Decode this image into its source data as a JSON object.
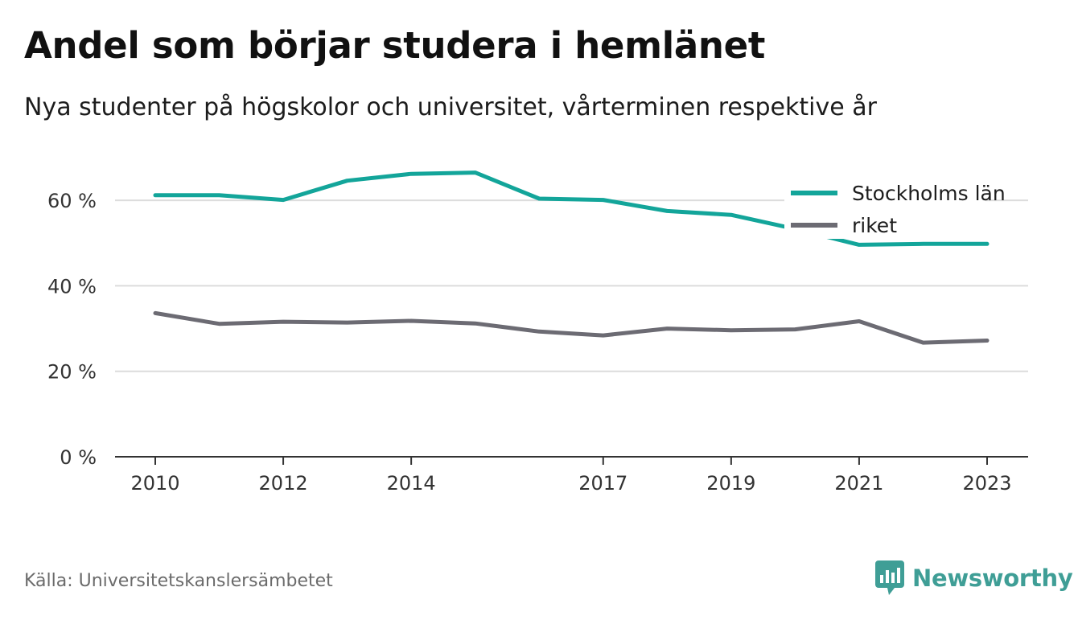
{
  "header": {
    "title": "Andel som börjar studera i hemlänet",
    "subtitle": "Nya studenter på högskolor och universitet, vårterminen respektive år"
  },
  "footer": {
    "source": "Källa: Universitetskanslersämbetet",
    "brand": "Newsworthy"
  },
  "colors": {
    "stockholm": "#13a59a",
    "riket": "#6c6b73",
    "grid": "#dcdcdc",
    "axis": "#333333",
    "brand": "#3f9e96"
  },
  "icons": {
    "brand_logo": "newsworthy-logo-icon"
  },
  "chart_data": {
    "type": "line",
    "title": "Andel som börjar studera i hemlänet",
    "subtitle": "Nya studenter på högskolor och universitet, vårterminen respektive år",
    "x": [
      2010,
      2011,
      2012,
      2013,
      2014,
      2015,
      2016,
      2017,
      2018,
      2019,
      2020,
      2021,
      2022,
      2023
    ],
    "x_ticks": [
      2010,
      2012,
      2014,
      2017,
      2019,
      2021,
      2023
    ],
    "x_tick_labels": [
      "2010",
      "2012",
      "2014",
      "2017",
      "2019",
      "2021",
      "2023"
    ],
    "ylim": [
      0,
      70
    ],
    "y_ticks": [
      0,
      20,
      40,
      60
    ],
    "y_tick_labels": [
      "0 %",
      "20 %",
      "40 %",
      "60 %"
    ],
    "grid": true,
    "legend_position": "top-right",
    "series": [
      {
        "name": "Stockholms län",
        "color": "#13a59a",
        "values": [
          61.2,
          61.2,
          60.1,
          64.6,
          66.2,
          66.5,
          60.4,
          60.1,
          57.5,
          56.6,
          53.3,
          49.6,
          49.8,
          49.8
        ]
      },
      {
        "name": "riket",
        "color": "#6c6b73",
        "values": [
          33.6,
          31.1,
          31.6,
          31.4,
          31.8,
          31.2,
          29.3,
          28.4,
          30.0,
          29.6,
          29.8,
          31.7,
          26.7,
          27.2
        ]
      }
    ]
  }
}
